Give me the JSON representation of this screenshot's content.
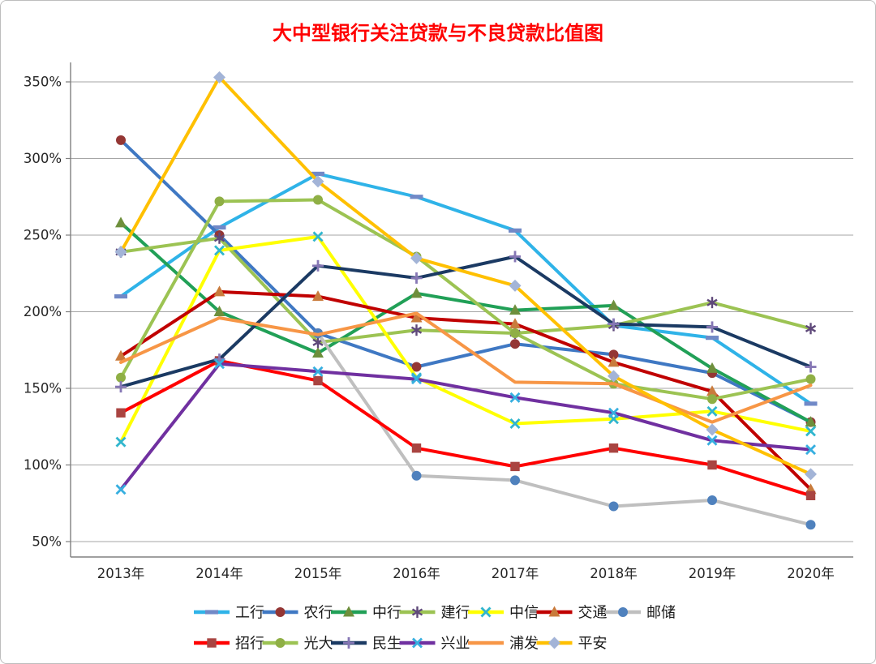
{
  "title": "大中型银行关注贷款与不良贷款比值图",
  "title_color": "#FF0000",
  "chart_data": {
    "type": "line",
    "categories": [
      "2013年",
      "2014年",
      "2015年",
      "2016年",
      "2017年",
      "2018年",
      "2019年",
      "2020年"
    ],
    "y_ticks": [
      "350%",
      "300%",
      "250%",
      "200%",
      "150%",
      "100%",
      "50%"
    ],
    "ylim": [
      50,
      350
    ],
    "grid": true,
    "legend_position": "bottom",
    "legend_rows": [
      7,
      6
    ],
    "series": [
      {
        "key": "gonghang",
        "name": "工行",
        "color": "#2FB3E8",
        "marker": "dash",
        "marker_color": "#7189C7",
        "values": [
          210,
          255,
          290,
          275,
          253,
          191,
          183,
          140
        ]
      },
      {
        "key": "nonghang",
        "name": "农行",
        "color": "#3F78C3",
        "marker": "circle",
        "marker_color": "#943634",
        "values": [
          312,
          250,
          186,
          164,
          179,
          172,
          160,
          128
        ]
      },
      {
        "key": "zhonghang",
        "name": "中行",
        "color": "#21A057",
        "marker": "triangle",
        "marker_color": "#6E8F3C",
        "values": [
          258,
          200,
          173,
          212,
          201,
          204,
          163,
          128
        ]
      },
      {
        "key": "jianhang",
        "name": "建行",
        "color": "#9CC353",
        "marker": "asterisk",
        "marker_color": "#5F497A",
        "values": [
          239,
          248,
          180,
          188,
          186,
          191,
          206,
          189
        ]
      },
      {
        "key": "zhongxin",
        "name": "中信",
        "color": "#FFFF00",
        "marker": "x",
        "marker_color": "#31B6CE",
        "values": [
          115,
          240,
          249,
          157,
          127,
          130,
          135,
          122
        ]
      },
      {
        "key": "jiaotong",
        "name": "交通",
        "color": "#C00000",
        "marker": "triangle",
        "marker_color": "#C97B3C",
        "values": [
          171,
          213,
          210,
          196,
          192,
          167,
          148,
          84
        ]
      },
      {
        "key": "youchu",
        "name": "邮储",
        "color": "#BFBFBF",
        "marker": "circle",
        "marker_color": "#4F81BD",
        "values": [
          null,
          null,
          186,
          93,
          90,
          73,
          77,
          61
        ]
      },
      {
        "key": "zhaohang",
        "name": "招行",
        "color": "#FF0000",
        "marker": "square",
        "marker_color": "#A94441",
        "values": [
          134,
          168,
          155,
          111,
          99,
          111,
          100,
          80
        ]
      },
      {
        "key": "guangda",
        "name": "光大",
        "color": "#9CC353",
        "marker": "circle",
        "marker_color": "#8FAF45",
        "values": [
          157,
          272,
          273,
          236,
          186,
          153,
          143,
          156
        ]
      },
      {
        "key": "minsheng",
        "name": "民生",
        "color": "#1B3A63",
        "marker": "plus",
        "marker_color": "#8677B5",
        "values": [
          151,
          169,
          230,
          222,
          236,
          192,
          190,
          164
        ]
      },
      {
        "key": "xingye",
        "name": "兴业",
        "color": "#7030A0",
        "marker": "x",
        "marker_color": "#37AFE0",
        "values": [
          84,
          166,
          161,
          156,
          144,
          134,
          116,
          110
        ]
      },
      {
        "key": "pufa",
        "name": "浦发",
        "color": "#F79646",
        "marker": "none",
        "marker_color": "#F79646",
        "values": [
          167,
          196,
          185,
          199,
          154,
          153,
          128,
          152
        ]
      },
      {
        "key": "pingan",
        "name": "平安",
        "color": "#FFC000",
        "marker": "diamond",
        "marker_color": "#A3B4D7",
        "values": [
          239,
          353,
          285,
          235,
          217,
          158,
          123,
          94
        ]
      }
    ]
  }
}
